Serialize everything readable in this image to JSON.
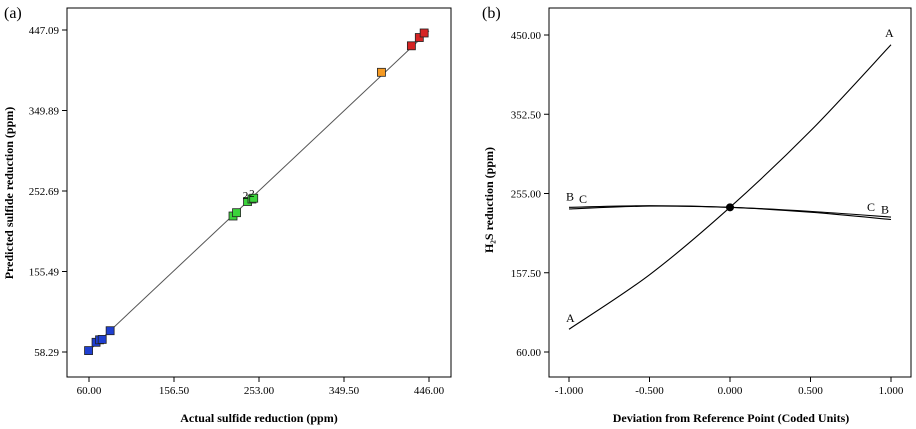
{
  "panels": {
    "a_label": "(a)",
    "b_label": "(b)"
  },
  "chart_data": [
    {
      "type": "scatter",
      "panel": "(a)",
      "xlabel": "Actual sulfide reduction (ppm)",
      "ylabel": "Predicted sulfide reduction (ppm)",
      "xlim": [
        60.0,
        446.0
      ],
      "ylim": [
        58.29,
        447.09
      ],
      "x_ticks": [
        60.0,
        156.5,
        253.0,
        349.5,
        446.0
      ],
      "x_tick_labels": [
        "60.00",
        "156.50",
        "253.00",
        "349.50",
        "446.00"
      ],
      "y_ticks": [
        58.29,
        155.49,
        252.69,
        349.89,
        447.09
      ],
      "y_tick_labels": [
        "58.29",
        "155.49",
        "252.69",
        "349.89",
        "447.09"
      ],
      "grid": false,
      "reference_line": {
        "x": [
          60.0,
          446.0
        ],
        "y": [
          60.0,
          446.0
        ]
      },
      "point_labels": [
        "2",
        "2"
      ],
      "colors": {
        "low": "#1f3fd1",
        "mid": "#3bd33b",
        "high_mid": "#f59a23",
        "high": "#d62424",
        "line": "#555555"
      },
      "points": [
        {
          "x": 59.5,
          "y": 60.0,
          "level": "low"
        },
        {
          "x": 68.0,
          "y": 70.0,
          "level": "low"
        },
        {
          "x": 72.0,
          "y": 73.0,
          "level": "low"
        },
        {
          "x": 75.0,
          "y": 73.5,
          "level": "low"
        },
        {
          "x": 84.0,
          "y": 84.0,
          "level": "low"
        },
        {
          "x": 223.5,
          "y": 222.5,
          "level": "mid"
        },
        {
          "x": 227.5,
          "y": 226.5,
          "level": "mid"
        },
        {
          "x": 240.0,
          "y": 240.0,
          "level": "mid"
        },
        {
          "x": 245.0,
          "y": 243.0,
          "level": "mid"
        },
        {
          "x": 247.0,
          "y": 244.0,
          "level": "mid"
        },
        {
          "x": 392.0,
          "y": 396.0,
          "level": "high_mid"
        },
        {
          "x": 426.0,
          "y": 428.0,
          "level": "high"
        },
        {
          "x": 435.0,
          "y": 438.0,
          "level": "high"
        },
        {
          "x": 440.5,
          "y": 443.5,
          "level": "high"
        }
      ]
    },
    {
      "type": "line",
      "panel": "(b)",
      "xlabel": "Deviation from Reference Point (Coded Units)",
      "ylabel": "H₂S reduction (ppm)",
      "xlim": [
        -1.0,
        1.0
      ],
      "ylim": [
        60.0,
        450.0
      ],
      "x_ticks": [
        -1.0,
        -0.5,
        0.0,
        0.5,
        1.0
      ],
      "x_tick_labels": [
        "-1.000",
        "-0.500",
        "0.000",
        "0.500",
        "1.000"
      ],
      "y_ticks": [
        60.0,
        157.5,
        255.0,
        352.5,
        450.0
      ],
      "y_tick_labels": [
        "60.00",
        "157.50",
        "255.00",
        "352.50",
        "450.00"
      ],
      "grid": false,
      "reference_point": {
        "x": 0.0,
        "y": 238.0
      },
      "series": [
        {
          "name": "A",
          "x": [
            -1.0,
            -0.5,
            0.0,
            0.5,
            1.0
          ],
          "y": [
            88.0,
            155.0,
            238.0,
            332.0,
            438.0
          ]
        },
        {
          "name": "B",
          "x": [
            -1.0,
            -0.5,
            0.0,
            0.5,
            1.0
          ],
          "y": [
            238.0,
            240.0,
            238.0,
            232.0,
            223.0
          ]
        },
        {
          "name": "C",
          "x": [
            -1.0,
            -0.5,
            0.0,
            0.5,
            1.0
          ],
          "y": [
            236.0,
            239.5,
            238.0,
            233.0,
            226.0
          ]
        }
      ]
    }
  ]
}
